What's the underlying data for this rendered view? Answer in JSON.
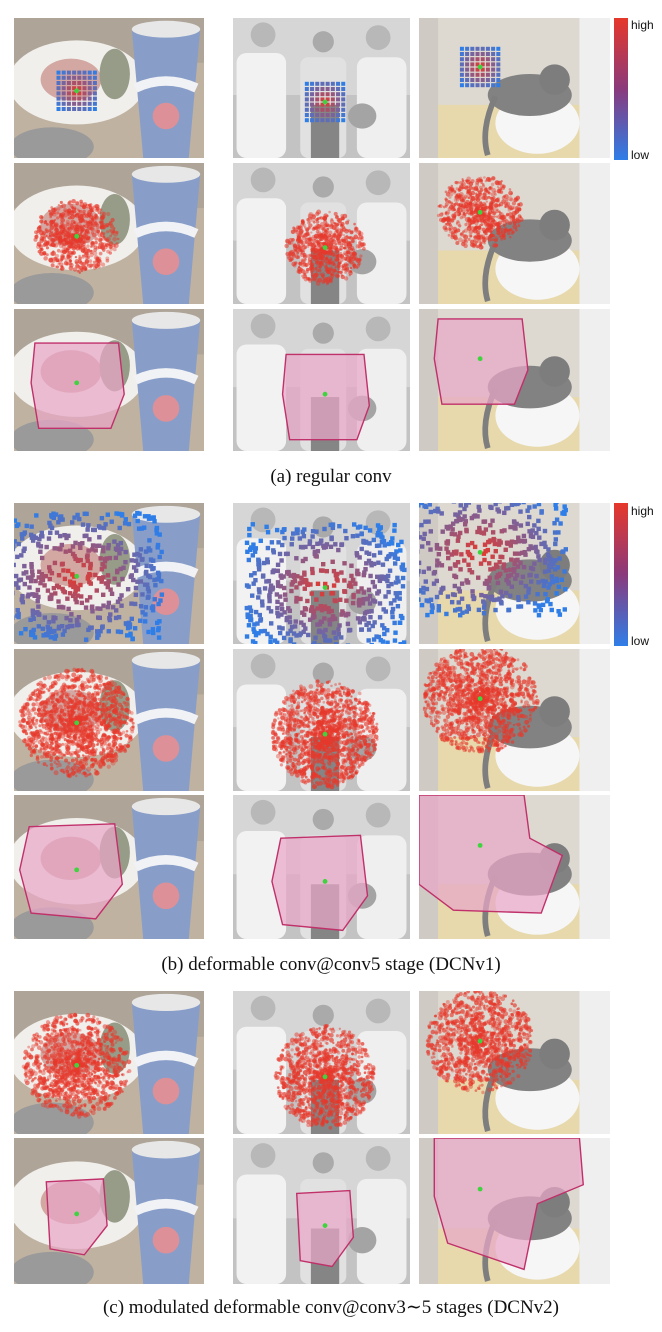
{
  "figure": {
    "panels": [
      {
        "id": "a",
        "caption": "(a)  regular conv",
        "rows": [
          "sample-grid",
          "heat",
          "region"
        ]
      },
      {
        "id": "b",
        "caption": "(b)  deformable conv@conv5 stage (DCNv1)",
        "rows": [
          "sample-scatter",
          "heat",
          "region"
        ]
      },
      {
        "id": "c",
        "caption": "(c)  modulated deformable conv@conv3∼5 stages (DCNv2)",
        "rows": [
          "heat",
          "region"
        ]
      }
    ],
    "scenes": [
      "plate-and-pepsi-cup",
      "baseball-players",
      "cat-on-toilet"
    ],
    "colorbar": {
      "high_label": "high",
      "low_label": "low",
      "high_color": "#e6382b",
      "low_color": "#2f7ee8"
    },
    "colors": {
      "region_fill": "#e8a6c6",
      "region_stroke": "#c0306a",
      "center_point": "#3fd43f"
    }
  }
}
